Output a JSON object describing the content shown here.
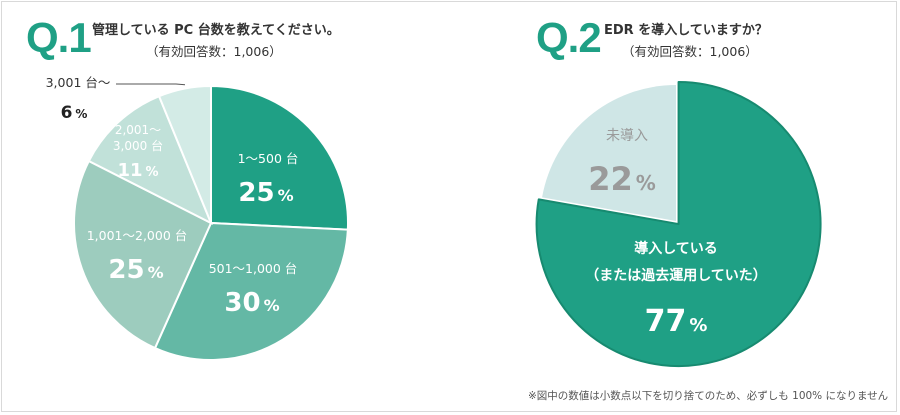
{
  "colors": {
    "accent": "#1fa085",
    "q1_s1": "#1fa085",
    "q1_s2": "#64b8a5",
    "q1_s3": "#9dccbe",
    "q1_s4": "#c1e1d9",
    "q1_s5": "#d3ebe6",
    "q2_yes": "#1fa085",
    "q2_no": "#cfe6e6",
    "dark_text": "#333333",
    "muted_text": "#9a9a9a"
  },
  "q1": {
    "number": "Q.1",
    "title": "管理している PC 台数を教えてください。",
    "subtitle": "（有効回答数：1,006）"
  },
  "q2": {
    "number": "Q.2",
    "title": "EDR を導入していますか？",
    "subtitle": "（有効回答数：1,006）"
  },
  "footnote": "※図中の数値は小数点以下を切り捨てのため、必ずしも 100% になりません",
  "chart_data": [
    {
      "type": "pie",
      "title": "管理している PC 台数を教えてください。",
      "subtitle": "（有効回答数：1,006）",
      "categories": [
        "1～500 台",
        "501～1,000 台",
        "1,001～2,000 台",
        "2,001～3,000 台",
        "3,001 台～"
      ],
      "values": [
        25,
        30,
        25,
        11,
        6
      ],
      "value_labels": [
        "25",
        "30",
        "25",
        "11",
        "6"
      ],
      "unit": "%"
    },
    {
      "type": "pie",
      "title": "EDR を導入していますか？",
      "subtitle": "（有効回答数：1,006）",
      "categories": [
        "導入している（または過去運用していた）",
        "未導入"
      ],
      "label_lines": [
        [
          "導入している",
          "（または過去運用していた）"
        ],
        [
          "未導入"
        ]
      ],
      "values": [
        77,
        22
      ],
      "value_labels": [
        "77",
        "22"
      ],
      "unit": "%"
    }
  ]
}
